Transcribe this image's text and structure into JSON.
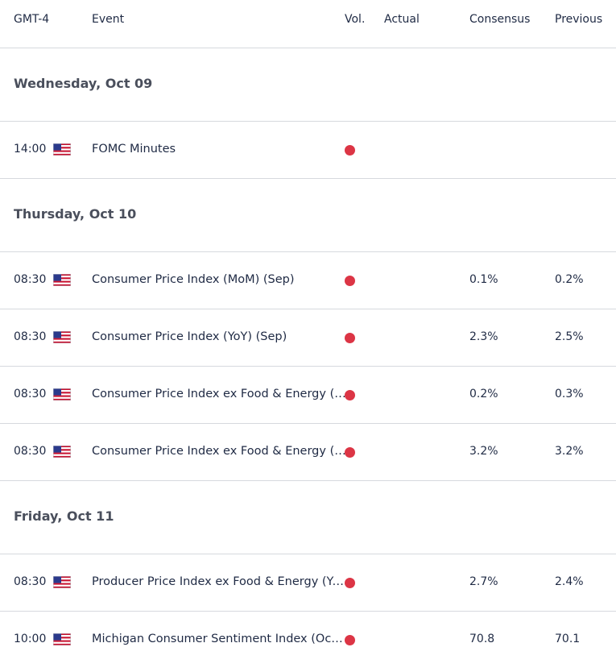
{
  "columns": {
    "time": "GMT-4",
    "event": "Event",
    "vol": "Vol.",
    "actual": "Actual",
    "consensus": "Consensus",
    "previous": "Previous"
  },
  "colors": {
    "high_impact_dot": "#dc3545",
    "divider": "#d6d9de"
  },
  "days": [
    {
      "label": "Wednesday, Oct 09",
      "events": [
        {
          "time": "14:00",
          "flag": "us-flag-icon",
          "event": "FOMC Minutes",
          "actual": "",
          "consensus": "",
          "previous": ""
        }
      ]
    },
    {
      "label": "Thursday, Oct 10",
      "events": [
        {
          "time": "08:30",
          "flag": "us-flag-icon",
          "event": "Consumer Price Index (MoM) (Sep)",
          "actual": "",
          "consensus": "0.1%",
          "previous": "0.2%"
        },
        {
          "time": "08:30",
          "flag": "us-flag-icon",
          "event": "Consumer Price Index (YoY) (Sep)",
          "actual": "",
          "consensus": "2.3%",
          "previous": "2.5%"
        },
        {
          "time": "08:30",
          "flag": "us-flag-icon",
          "event": "Consumer Price Index ex Food & Energy (MoM) (Sep)",
          "actual": "",
          "consensus": "0.2%",
          "previous": "0.3%"
        },
        {
          "time": "08:30",
          "flag": "us-flag-icon",
          "event": "Consumer Price Index ex Food & Energy (YoY) (Sep)",
          "actual": "",
          "consensus": "3.2%",
          "previous": "3.2%"
        }
      ]
    },
    {
      "label": "Friday, Oct 11",
      "events": [
        {
          "time": "08:30",
          "flag": "us-flag-icon",
          "event": "Producer Price Index ex Food & Energy (YoY) (Sep)",
          "actual": "",
          "consensus": "2.7%",
          "previous": "2.4%"
        },
        {
          "time": "10:00",
          "flag": "us-flag-icon",
          "event": "Michigan Consumer Sentiment Index (Oct) (Prel)",
          "actual": "",
          "consensus": "70.8",
          "previous": "70.1"
        }
      ]
    }
  ]
}
